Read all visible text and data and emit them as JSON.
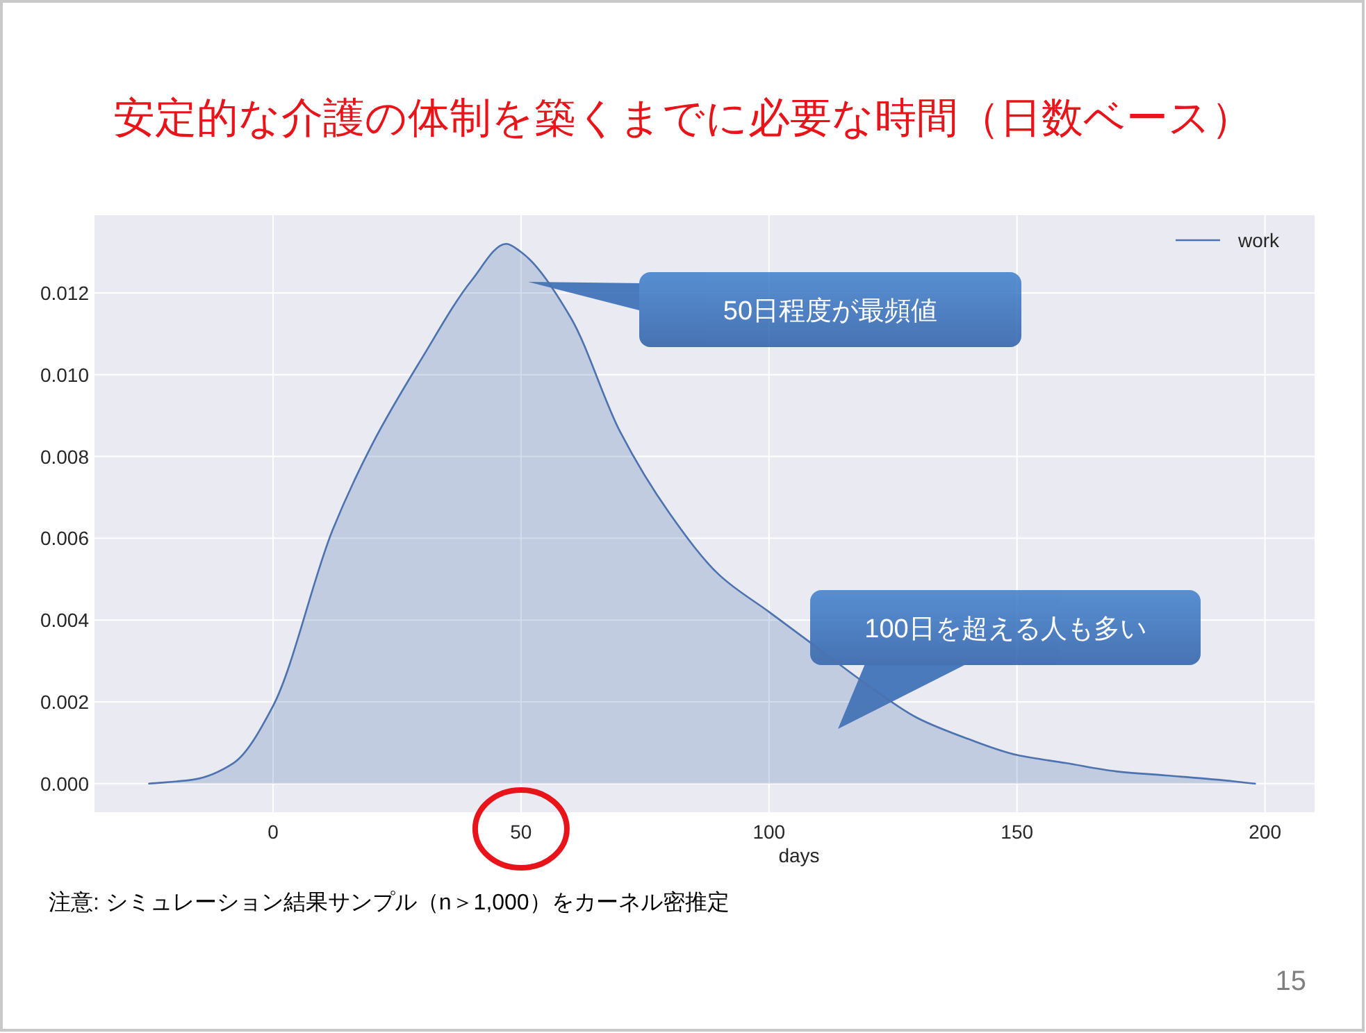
{
  "chart_data": {
    "type": "area",
    "title": "安定的な介護の体制を築くまでに必要な時間（日数ベース）",
    "xlabel": "days",
    "xlim": [
      -36,
      210
    ],
    "ylim": [
      -0.0007,
      0.0139
    ],
    "xticks": [
      0,
      50,
      100,
      150,
      200
    ],
    "yticks": [
      {
        "value": 0,
        "label": "0.000"
      },
      {
        "value": 0.002,
        "label": "0.002"
      },
      {
        "value": 0.004,
        "label": "0.004"
      },
      {
        "value": 0.006,
        "label": "0.006"
      },
      {
        "value": 0.008,
        "label": "0.008"
      },
      {
        "value": 0.01,
        "label": "0.010"
      },
      {
        "value": 0.012,
        "label": "0.012"
      }
    ],
    "grid": true,
    "legend": "top right",
    "series": [
      {
        "name": "work",
        "color": "#4c72b0",
        "x": [
          -25,
          -16,
          -8,
          0,
          12,
          20,
          30,
          40,
          47,
          50,
          60,
          70,
          80,
          90,
          100,
          110,
          120,
          130,
          140,
          150,
          160,
          170,
          180,
          190,
          198
        ],
        "values": [
          0,
          0.0001,
          0.0005,
          0.0019,
          0.0062,
          0.0083,
          0.0104,
          0.0123,
          0.0132,
          0.013,
          0.0114,
          0.0086,
          0.0066,
          0.0051,
          0.0042,
          0.0033,
          0.0024,
          0.0016,
          0.0011,
          0.0007,
          0.0005,
          0.0003,
          0.0002,
          0.0001,
          0
        ]
      }
    ],
    "annotations": [
      "50日程度が最頻値",
      "100日を超える人も多い",
      "注意: シミュレーション結果サンプル（n＞1,000）をカーネル密推定",
      "15"
    ]
  }
}
